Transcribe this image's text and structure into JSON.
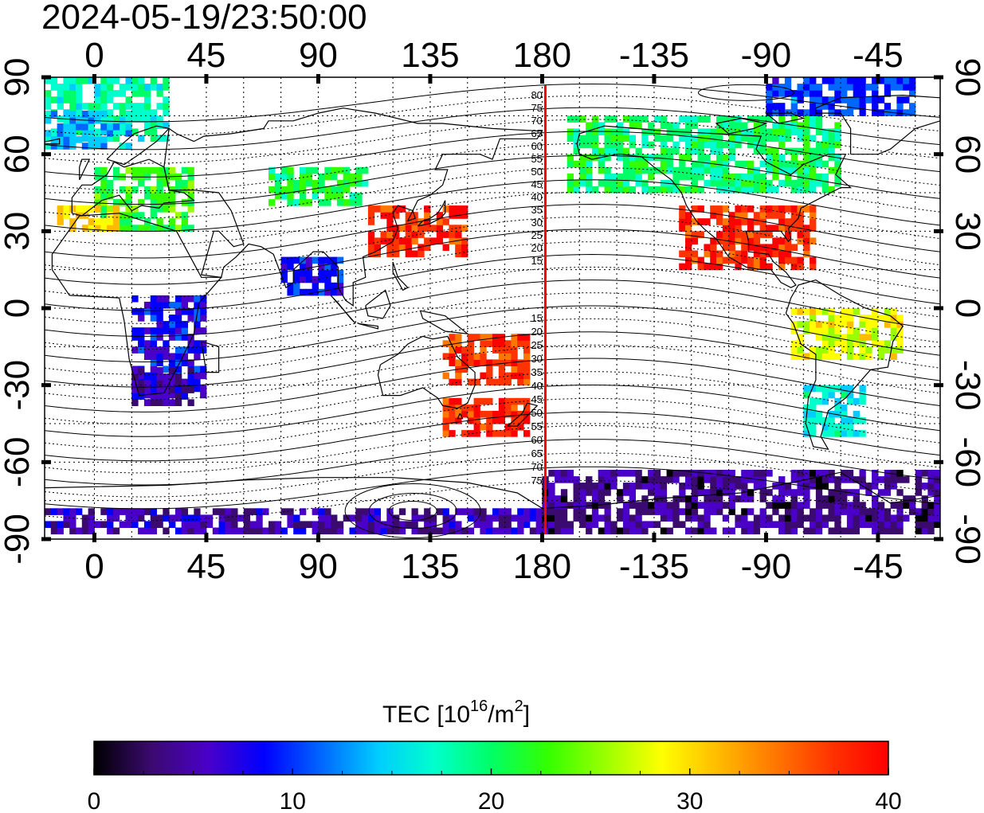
{
  "title": "2024-05-19/23:50:00",
  "colorbar": {
    "label_main": "TEC  [10",
    "label_exp": "16",
    "label_unit": "/m",
    "label_exp2": "2",
    "label_end": "]",
    "ticks": [
      "0",
      "10",
      "20",
      "30",
      "40"
    ],
    "range": [
      0,
      40
    ],
    "colors": [
      "#000000",
      "#3a0a6e",
      "#4a00c8",
      "#0000ff",
      "#0066ff",
      "#00ccff",
      "#00ffcc",
      "#00ff66",
      "#33ff00",
      "#99ff00",
      "#ffff00",
      "#ffbb00",
      "#ff7700",
      "#ff3300",
      "#ff0000"
    ]
  },
  "axes": {
    "x_top_labels": [
      "0",
      "45",
      "90",
      "135",
      "180",
      "-135",
      "-90",
      "-45"
    ],
    "x_bottom_labels": [
      "0",
      "45",
      "90",
      "135",
      "180",
      "-135",
      "-90",
      "-45"
    ],
    "y_left_labels": [
      "90",
      "60",
      "30",
      "0",
      "-30",
      "-60",
      "-90"
    ],
    "y_right_labels": [
      "90",
      "60",
      "30",
      "0",
      "-30",
      "-60",
      "-90"
    ]
  },
  "terminator": {
    "longitude": 180,
    "color": "#ff0000"
  },
  "mlat_labels_north": [
    "80",
    "75",
    "70",
    "65",
    "60",
    "55",
    "50",
    "45",
    "40",
    "35",
    "30",
    "25",
    "20",
    "15"
  ],
  "mlat_labels_south": [
    "15",
    "20",
    "25",
    "30",
    "35",
    "40",
    "45",
    "50",
    "55",
    "60",
    "65",
    "70",
    "75"
  ],
  "chart_data": {
    "type": "heatmap",
    "title": "2024-05-19/23:50:00",
    "xlabel": "",
    "ylabel": "",
    "xlim": [
      -20,
      340
    ],
    "ylim": [
      -90,
      90
    ],
    "zlabel": "TEC  [10^16/m^2]",
    "zlim": [
      0,
      40
    ],
    "regions": [
      {
        "lon": [
          -20,
          30
        ],
        "lat": [
          65,
          88
        ],
        "tec": 18
      },
      {
        "lon": [
          -20,
          15
        ],
        "lat": [
          62,
          75
        ],
        "tec": 14
      },
      {
        "lon": [
          0,
          40
        ],
        "lat": [
          30,
          55
        ],
        "tec": 22
      },
      {
        "lon": [
          -15,
          10
        ],
        "lat": [
          30,
          40
        ],
        "tec": 30
      },
      {
        "lon": [
          70,
          110
        ],
        "lat": [
          40,
          55
        ],
        "tec": 21
      },
      {
        "lon": [
          110,
          150
        ],
        "lat": [
          20,
          40
        ],
        "tec": 38
      },
      {
        "lon": [
          75,
          100
        ],
        "lat": [
          5,
          20
        ],
        "tec": 9
      },
      {
        "lon": [
          15,
          45
        ],
        "lat": [
          -35,
          5
        ],
        "tec": 8
      },
      {
        "lon": [
          15,
          40
        ],
        "lat": [
          -38,
          -25
        ],
        "tec": 5
      },
      {
        "lon": [
          140,
          175
        ],
        "lat": [
          -50,
          -35
        ],
        "tec": 38
      },
      {
        "lon": [
          140,
          175
        ],
        "lat": [
          -30,
          -10
        ],
        "tec": 37
      },
      {
        "lon": [
          -20,
          180
        ],
        "lat": [
          -88,
          -78
        ],
        "tec": 5
      },
      {
        "lon": [
          180,
          340
        ],
        "lat": [
          -88,
          -65
        ],
        "tec": 4
      },
      {
        "lon": [
          190,
          300
        ],
        "lat": [
          45,
          75
        ],
        "tec": 20
      },
      {
        "lon": [
          235,
          290
        ],
        "lat": [
          15,
          40
        ],
        "tec": 38
      },
      {
        "lon": [
          280,
          325
        ],
        "lat": [
          -20,
          0
        ],
        "tec": 28
      },
      {
        "lon": [
          285,
          310
        ],
        "lat": [
          -50,
          -30
        ],
        "tec": 16
      },
      {
        "lon": [
          270,
          330
        ],
        "lat": [
          75,
          88
        ],
        "tec": 10
      }
    ]
  }
}
